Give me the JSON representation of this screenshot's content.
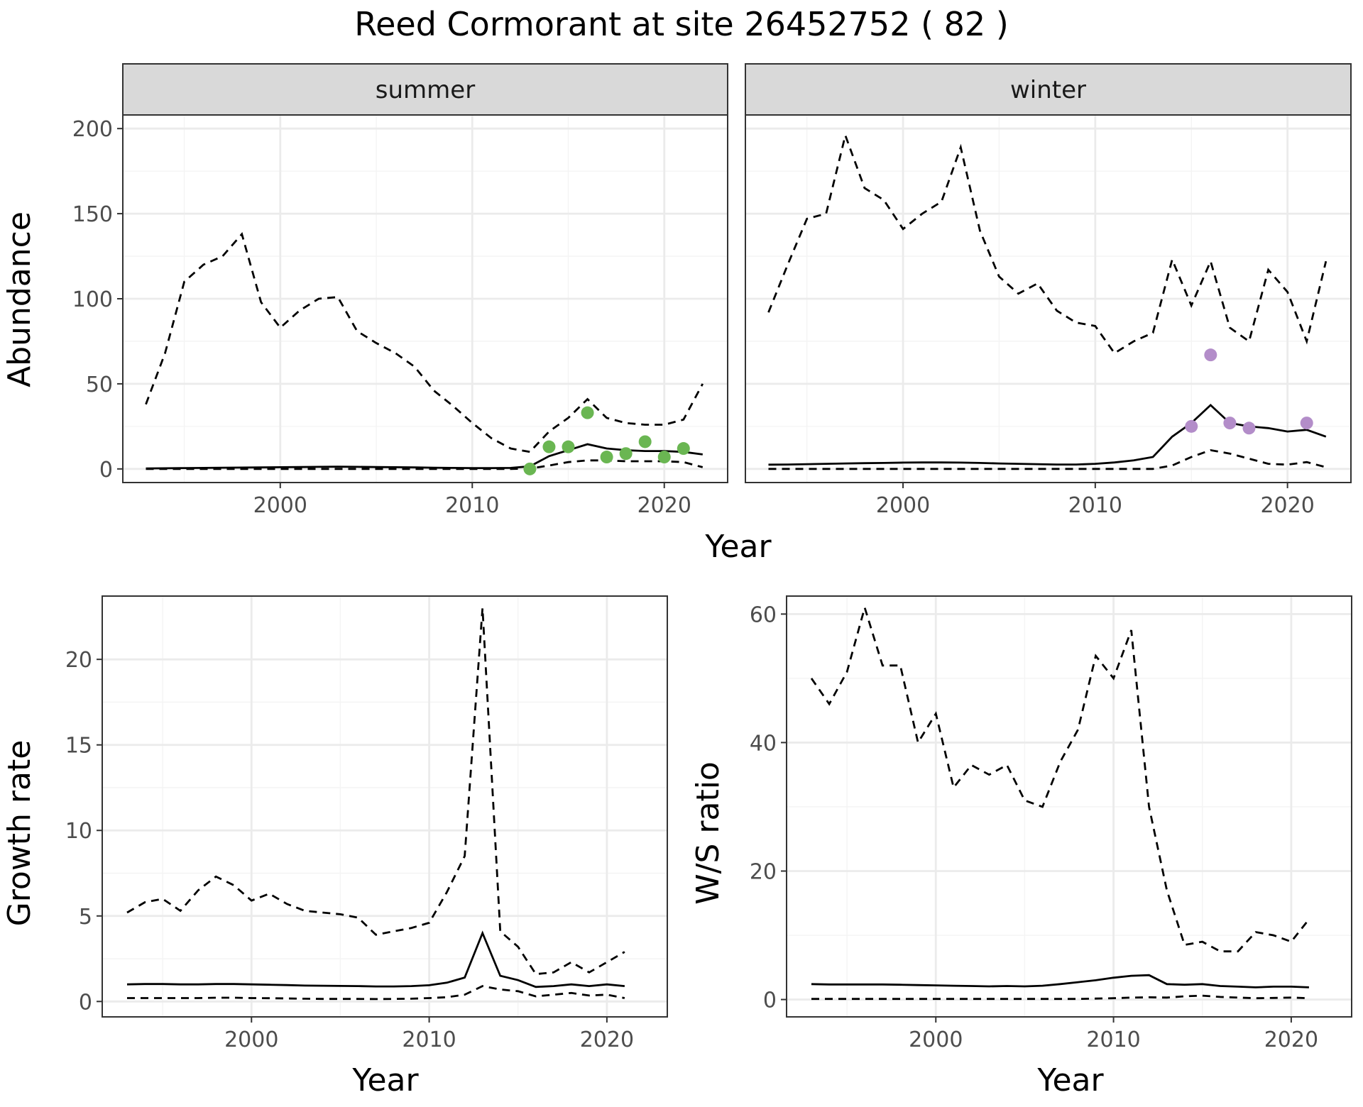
{
  "page_title": "Reed Cormorant at site 26452752 ( 82 )",
  "colors": {
    "summer_points": "#6ab652",
    "winter_points": "#b38dc9",
    "line": "#000000",
    "strip_fill": "#d9d9d9",
    "grid_major": "#ebebeb",
    "grid_minor": "#f4f4f4",
    "border": "#333333"
  },
  "chart_data": [
    {
      "id": "abundance",
      "type": "line",
      "ylabel": "Abundance",
      "xlabel": "Year",
      "facets": [
        "summer",
        "winter"
      ],
      "xlim": [
        1991.8,
        2023.3
      ],
      "ylim": [
        -8,
        208
      ],
      "xticks": [
        2000,
        2010,
        2020
      ],
      "yticks": [
        0,
        50,
        100,
        150,
        200
      ],
      "panels": [
        {
          "facet": "summer",
          "x": [
            1993,
            1994,
            1995,
            1996,
            1997,
            1998,
            1999,
            2000,
            2001,
            2002,
            2003,
            2004,
            2005,
            2006,
            2007,
            2008,
            2009,
            2010,
            2011,
            2012,
            2013,
            2014,
            2015,
            2016,
            2017,
            2018,
            2019,
            2020,
            2021,
            2022
          ],
          "mean": [
            0.3,
            0.4,
            0.5,
            0.6,
            0.7,
            0.8,
            0.9,
            1.0,
            1.1,
            1.2,
            1.3,
            1.2,
            1.1,
            1.0,
            0.9,
            0.7,
            0.6,
            0.5,
            0.5,
            0.6,
            1.5,
            7.5,
            11,
            14.5,
            12,
            11,
            10.5,
            10.5,
            10,
            8.5
          ],
          "lower": [
            0,
            0,
            0,
            0,
            0,
            0,
            0,
            0,
            0,
            0,
            0,
            0,
            0,
            0,
            0,
            0,
            0,
            0,
            0,
            0,
            0.2,
            2,
            4,
            5,
            5,
            4.5,
            4.5,
            4.5,
            4,
            1
          ],
          "upper": [
            38,
            68,
            110,
            120,
            125,
            138,
            98,
            83,
            93,
            100,
            101,
            81,
            74,
            68,
            60,
            46,
            37,
            27,
            18,
            12,
            10,
            22,
            30,
            41,
            30,
            27,
            26,
            26,
            29,
            50
          ],
          "points": {
            "x": [
              2013,
              2014,
              2015,
              2016,
              2017,
              2018,
              2019,
              2020,
              2021
            ],
            "y": [
              0,
              13,
              13,
              33,
              7,
              9,
              16,
              7,
              12
            ]
          }
        },
        {
          "facet": "winter",
          "x": [
            1993,
            1994,
            1995,
            1996,
            1997,
            1998,
            1999,
            2000,
            2001,
            2002,
            2003,
            2004,
            2005,
            2006,
            2007,
            2008,
            2009,
            2010,
            2011,
            2012,
            2013,
            2014,
            2015,
            2016,
            2017,
            2018,
            2019,
            2020,
            2021,
            2022
          ],
          "mean": [
            2.5,
            2.6,
            2.8,
            3.0,
            3.2,
            3.4,
            3.5,
            3.7,
            3.8,
            3.8,
            3.7,
            3.5,
            3.2,
            3.0,
            2.8,
            2.6,
            2.6,
            3.0,
            3.8,
            5.0,
            7.0,
            19,
            27,
            37.5,
            27,
            25,
            24,
            22,
            23,
            19
          ],
          "lower": [
            0,
            0,
            0,
            0,
            0,
            0,
            0,
            0,
            0,
            0,
            0,
            0,
            0,
            0,
            0,
            0,
            0,
            0,
            0,
            0,
            0,
            2,
            7,
            11,
            9,
            6,
            3,
            2.5,
            4,
            1
          ],
          "upper": [
            92,
            120,
            147,
            150,
            196,
            165,
            158,
            141,
            150,
            157,
            189,
            140,
            113,
            103,
            109,
            93,
            86,
            84,
            68,
            75,
            80,
            123,
            96,
            122,
            83,
            75,
            117,
            104,
            75,
            122
          ],
          "points": {
            "x": [
              2015,
              2016,
              2017,
              2018,
              2021
            ],
            "y": [
              25,
              67,
              27,
              24,
              27
            ]
          }
        }
      ]
    },
    {
      "id": "growth",
      "type": "line",
      "ylabel": "Growth rate",
      "xlabel": "Year",
      "xlim": [
        1991.6,
        2023.4
      ],
      "ylim": [
        -0.9,
        23.7
      ],
      "xticks": [
        2000,
        2010,
        2020
      ],
      "yticks": [
        0,
        5,
        10,
        15,
        20
      ],
      "x": [
        1993,
        1994,
        1995,
        1996,
        1997,
        1998,
        1999,
        2000,
        2001,
        2002,
        2003,
        2004,
        2005,
        2006,
        2007,
        2008,
        2009,
        2010,
        2011,
        2012,
        2013,
        2014,
        2015,
        2016,
        2017,
        2018,
        2019,
        2020,
        2021
      ],
      "mean": [
        1.0,
        1.02,
        1.02,
        1.0,
        1.0,
        1.02,
        1.02,
        1.0,
        0.98,
        0.96,
        0.93,
        0.92,
        0.91,
        0.9,
        0.88,
        0.88,
        0.9,
        0.95,
        1.1,
        1.4,
        4.0,
        1.5,
        1.25,
        0.85,
        0.9,
        1.0,
        0.9,
        1.0,
        0.9
      ],
      "lower": [
        0.2,
        0.2,
        0.2,
        0.2,
        0.2,
        0.22,
        0.22,
        0.2,
        0.19,
        0.18,
        0.16,
        0.15,
        0.15,
        0.15,
        0.14,
        0.15,
        0.16,
        0.2,
        0.25,
        0.4,
        0.9,
        0.7,
        0.6,
        0.3,
        0.4,
        0.5,
        0.35,
        0.4,
        0.2
      ],
      "upper": [
        5.2,
        5.8,
        6.0,
        5.3,
        6.5,
        7.3,
        6.8,
        5.9,
        6.3,
        5.7,
        5.3,
        5.2,
        5.1,
        4.9,
        3.9,
        4.1,
        4.3,
        4.6,
        6.4,
        8.5,
        23,
        4.1,
        3.2,
        1.6,
        1.7,
        2.3,
        1.7,
        2.3,
        2.9
      ]
    },
    {
      "id": "ratio",
      "type": "line",
      "ylabel": "W/S ratio",
      "xlabel": "Year",
      "xlim": [
        1991.6,
        2023.4
      ],
      "ylim": [
        -2.7,
        62.8
      ],
      "xticks": [
        2000,
        2010,
        2020
      ],
      "yticks": [
        0,
        20,
        40,
        60
      ],
      "x": [
        1993,
        1994,
        1995,
        1996,
        1997,
        1998,
        1999,
        2000,
        2001,
        2002,
        2003,
        2004,
        2005,
        2006,
        2007,
        2008,
        2009,
        2010,
        2011,
        2012,
        2013,
        2014,
        2015,
        2016,
        2017,
        2018,
        2019,
        2020,
        2021
      ],
      "mean": [
        2.4,
        2.35,
        2.35,
        2.35,
        2.35,
        2.3,
        2.25,
        2.2,
        2.15,
        2.1,
        2.05,
        2.1,
        2.05,
        2.15,
        2.4,
        2.7,
        3.0,
        3.4,
        3.7,
        3.8,
        2.4,
        2.3,
        2.4,
        2.1,
        2.0,
        1.9,
        2.0,
        2.0,
        1.9
      ],
      "lower": [
        0.1,
        0.1,
        0.1,
        0.1,
        0.1,
        0.1,
        0.1,
        0.1,
        0.1,
        0.1,
        0.1,
        0.1,
        0.1,
        0.1,
        0.1,
        0.1,
        0.15,
        0.2,
        0.3,
        0.35,
        0.3,
        0.5,
        0.6,
        0.4,
        0.3,
        0.2,
        0.25,
        0.3,
        0.2
      ],
      "upper": [
        50,
        46,
        51,
        61,
        52,
        52,
        40,
        44.5,
        33,
        36.5,
        35,
        36.5,
        31,
        30,
        37,
        42,
        53.5,
        50,
        57.5,
        30,
        17,
        8.5,
        9,
        7.5,
        7.5,
        10.5,
        10,
        9,
        12.5
      ]
    }
  ]
}
